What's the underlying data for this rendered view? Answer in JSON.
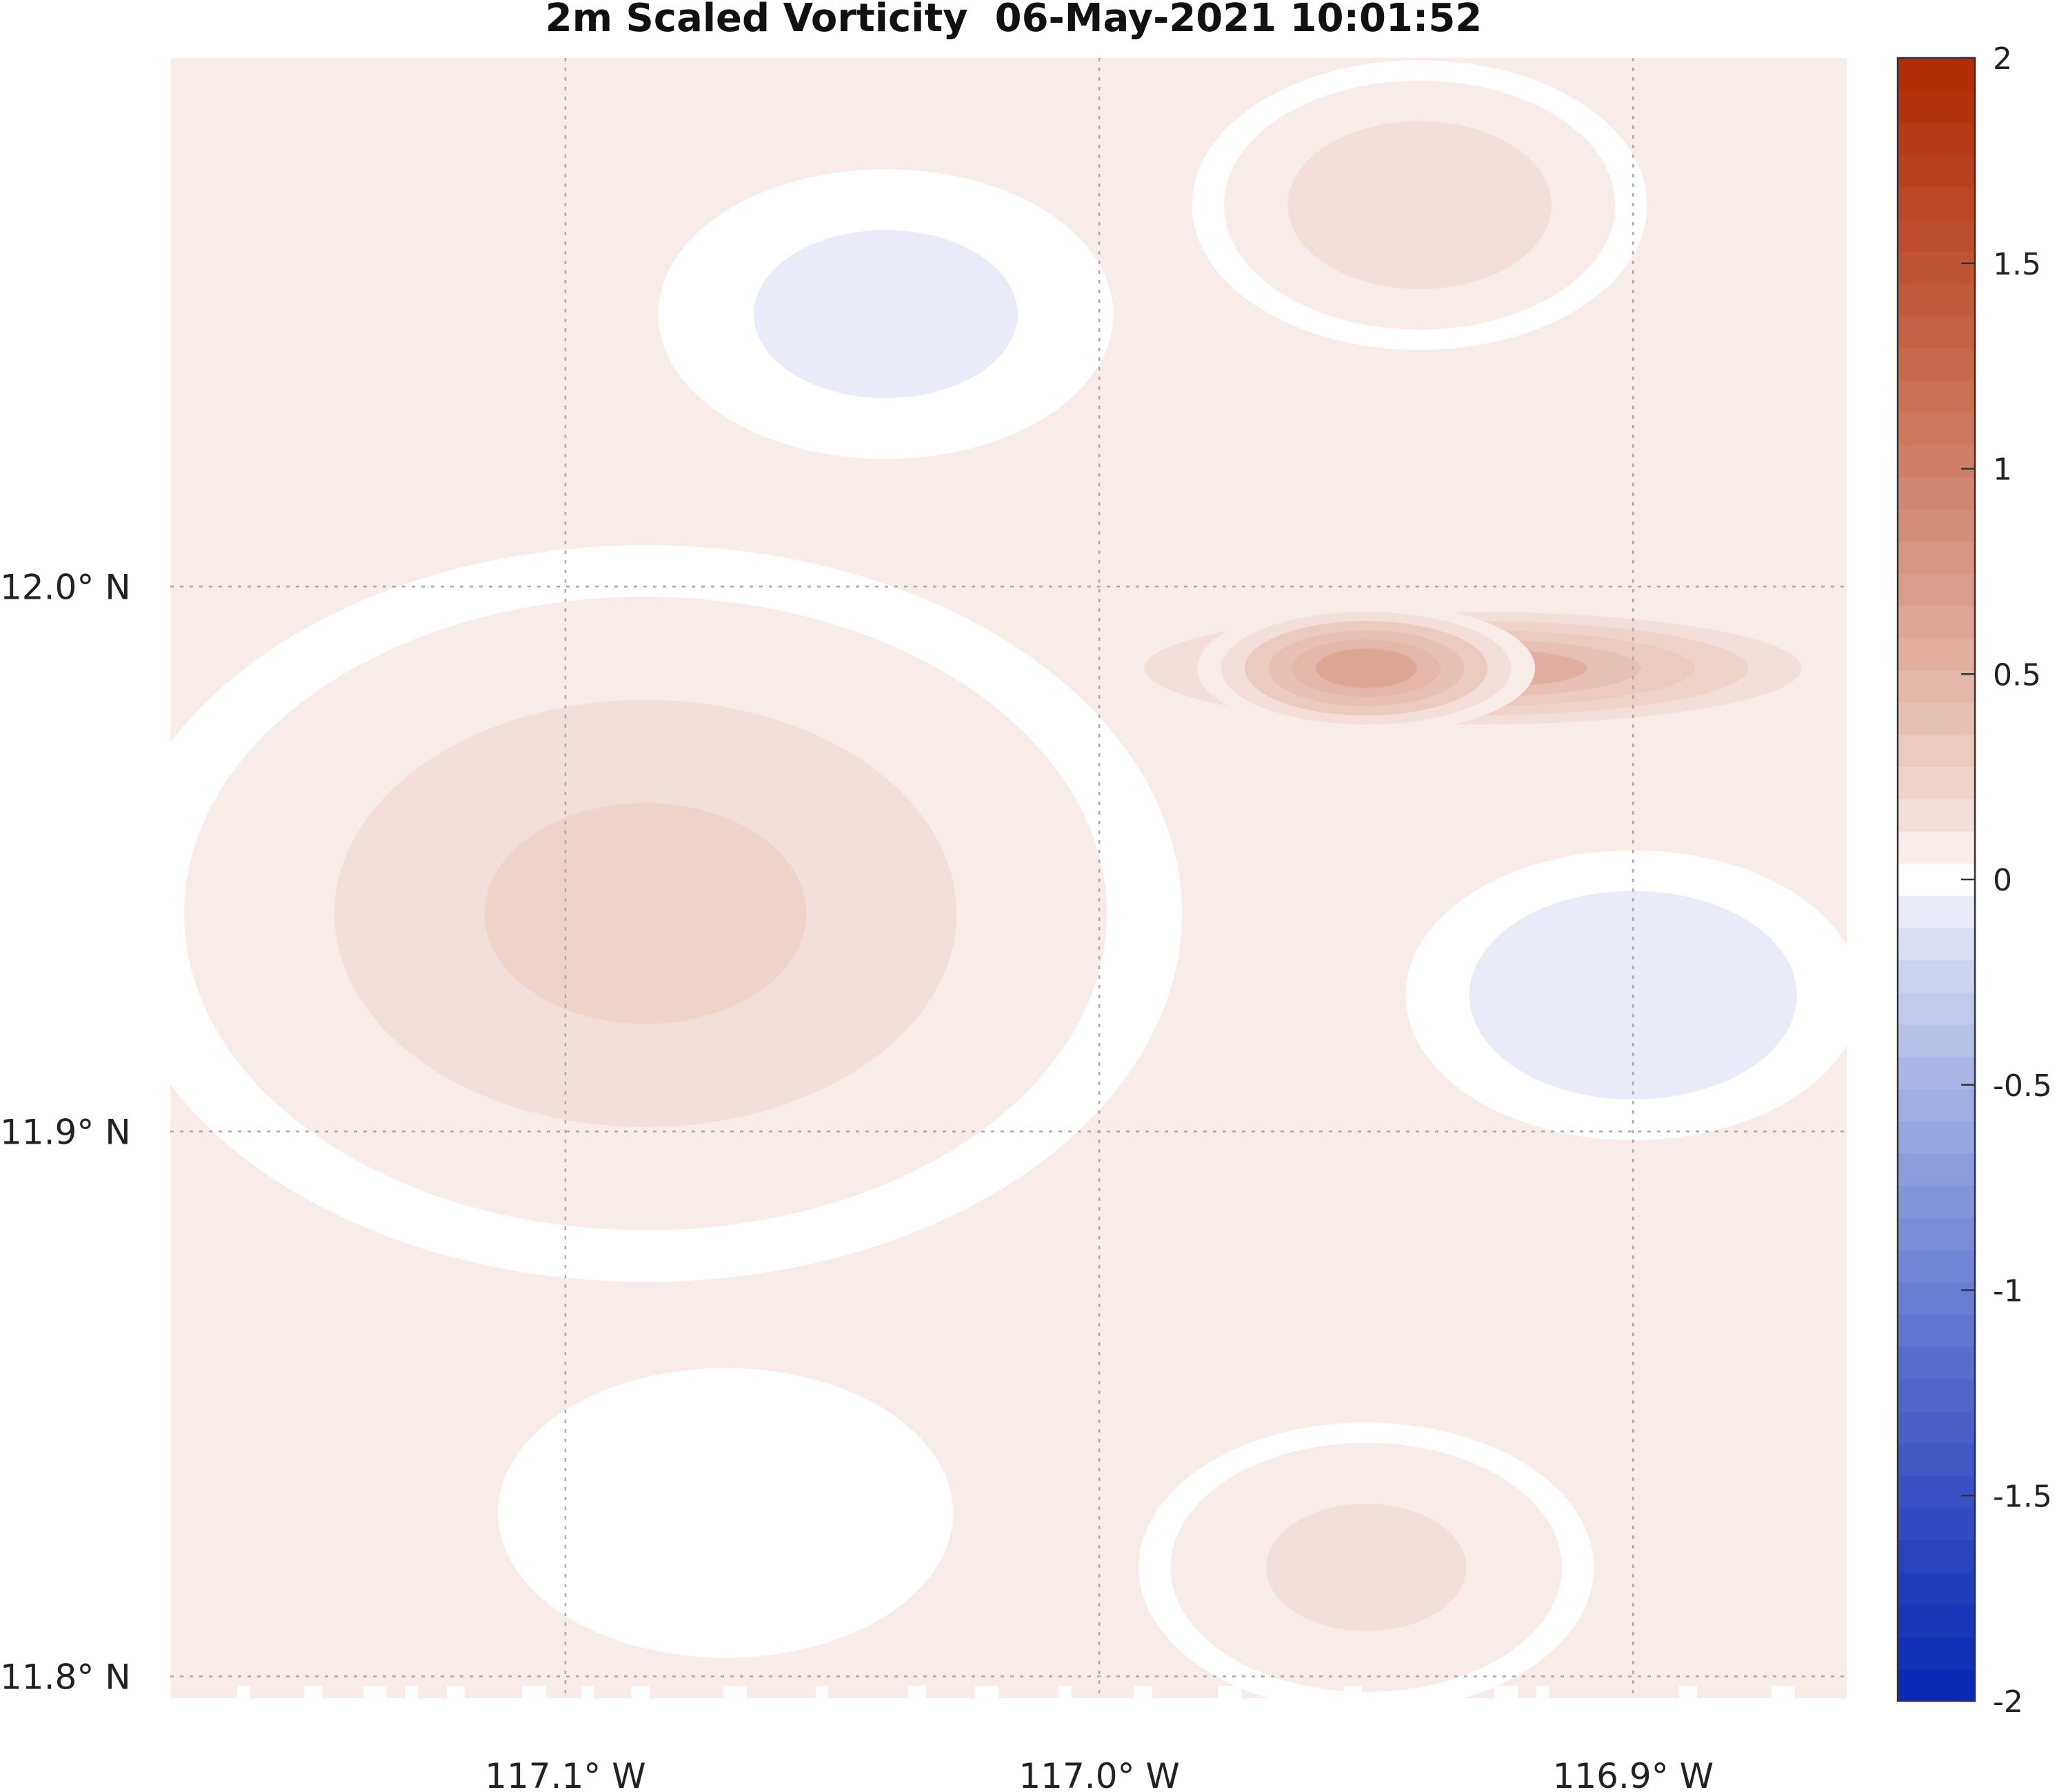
{
  "chart_data": {
    "type": "heatmap",
    "title": "2m Scaled Vorticity  06-May-2021 10:01:52",
    "xlabel": "",
    "ylabel": "",
    "x_ticks": [
      {
        "value": -117.1,
        "label": "117.1° W"
      },
      {
        "value": -117.0,
        "label": "117.0° W"
      },
      {
        "value": -116.9,
        "label": "116.9° W"
      }
    ],
    "y_ticks": [
      {
        "value": 12.0,
        "label": "12.0° N"
      },
      {
        "value": 11.9,
        "label": "11.9° N"
      },
      {
        "value": 11.8,
        "label": "11.8° N"
      }
    ],
    "xlim": [
      -117.174,
      -116.86
    ],
    "ylim": [
      11.796,
      12.097
    ],
    "grid": true,
    "colormap": "diverging blue-white-red",
    "colorbar": {
      "range": [
        -2,
        2
      ],
      "levels": 51,
      "ticks": [
        2,
        1.5,
        1,
        0.5,
        0,
        -0.5,
        -1,
        -1.5,
        -2
      ],
      "tick_labels": [
        "2",
        "1.5",
        "1",
        "0.5",
        "0",
        "-0.5",
        "-1",
        "-1.5",
        "-2"
      ],
      "colors": {
        "negative_end": "#0a2bb5",
        "zero": "#ffffff",
        "positive_end": "#b02d06"
      }
    },
    "features": [
      {
        "type": "ridge",
        "lon_range": [
          -116.99,
          -116.87
        ],
        "lat": 11.985,
        "peak": 0.52
      },
      {
        "type": "ridge",
        "lon_range": [
          -116.97,
          -116.93
        ],
        "lat": 11.985,
        "peak": 0.6
      },
      {
        "type": "broad_positive",
        "lon_range": [
          -117.17,
          -117.0
        ],
        "lat_range": [
          11.88,
          12.0
        ],
        "value": 0.2
      },
      {
        "type": "positive_lobe",
        "center": [
          -116.94,
          12.07
        ],
        "value": 0.18
      },
      {
        "type": "positive_lobe",
        "center": [
          -116.95,
          11.82
        ],
        "value": 0.15
      },
      {
        "type": "negative_lobe",
        "center": [
          -117.04,
          12.05
        ],
        "value": -0.07
      },
      {
        "type": "negative_lobe",
        "center": [
          -116.9,
          11.925
        ],
        "value": -0.12
      },
      {
        "type": "negative_lobe",
        "center": [
          -117.07,
          11.83
        ],
        "value": -0.03
      }
    ]
  }
}
